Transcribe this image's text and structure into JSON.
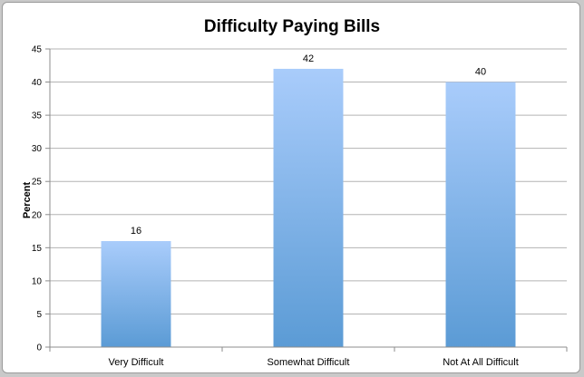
{
  "chart_data": {
    "type": "bar",
    "title": "Difficulty Paying Bills",
    "ylabel": "Percent",
    "xlabel": "",
    "categories": [
      "Very Difficult",
      "Somewhat Difficult",
      "Not At All Difficult"
    ],
    "values": [
      16,
      42,
      40
    ],
    "data_labels": [
      "16",
      "42",
      "40"
    ],
    "ylim": [
      0,
      45
    ],
    "yticks": [
      "0",
      "5",
      "10",
      "15",
      "20",
      "25",
      "30",
      "35",
      "40",
      "45"
    ],
    "grid": true,
    "legend": "none",
    "colors": {
      "bar_top": "#a9ccfb",
      "bar_bottom": "#5b9bd5",
      "grid": "#b3b3b3",
      "axis": "#8c8c8c"
    }
  }
}
